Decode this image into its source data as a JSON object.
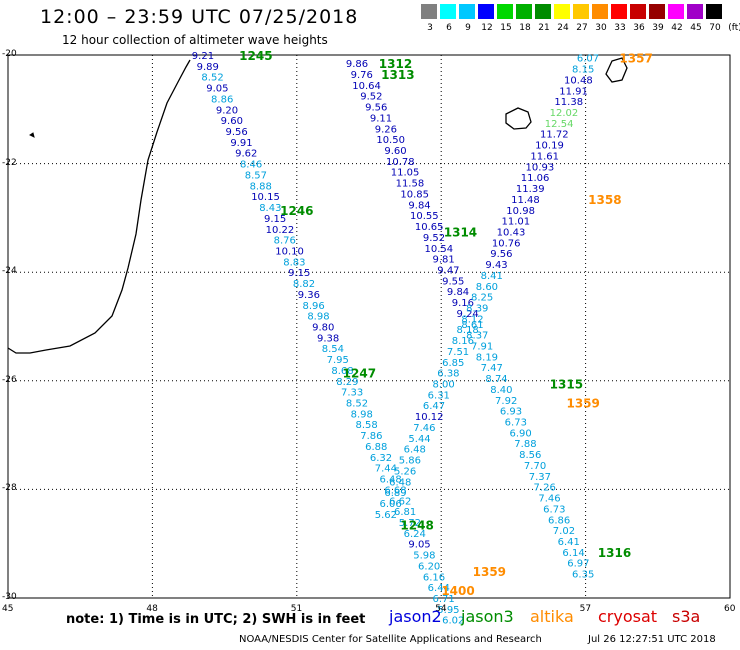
{
  "header": {
    "title": "12:00  –  23:59  UTC  07/25/2018",
    "subtitle": "12 hour collection of altimeter wave heights"
  },
  "legend": {
    "unit": "(ft)",
    "bins": [
      {
        "label": "3",
        "color": "#808080"
      },
      {
        "label": "6",
        "color": "#00ffff"
      },
      {
        "label": "9",
        "color": "#00c8ff"
      },
      {
        "label": "12",
        "color": "#0000ff"
      },
      {
        "label": "15",
        "color": "#00d800"
      },
      {
        "label": "18",
        "color": "#00b000"
      },
      {
        "label": "21",
        "color": "#008c00"
      },
      {
        "label": "24",
        "color": "#ffff00"
      },
      {
        "label": "27",
        "color": "#ffc800"
      },
      {
        "label": "30",
        "color": "#ff8c00"
      },
      {
        "label": "33",
        "color": "#ff0000"
      },
      {
        "label": "36",
        "color": "#c80000"
      },
      {
        "label": "39",
        "color": "#960000"
      },
      {
        "label": "42",
        "color": "#ff00ff"
      },
      {
        "label": "45",
        "color": "#a000c8"
      },
      {
        "label": "70",
        "color": "#000000"
      }
    ]
  },
  "axes": {
    "lon_ticks": [
      "45",
      "48",
      "51",
      "54",
      "57",
      "60"
    ],
    "lat_ticks": [
      "-20",
      "-22",
      "-24",
      "-26",
      "-28",
      "-30"
    ],
    "lon_range": [
      45,
      60
    ],
    "lat_range": [
      -20,
      -30
    ]
  },
  "colors": {
    "jason2": "#0000b4",
    "jason3": "#008c00",
    "altika": "#ff8c00",
    "cryosat": "#dc0000",
    "s3a": "#c80000",
    "light": "#00a0dc",
    "lightgreen": "#66d866",
    "pass_green": "#008c00",
    "pass_orange": "#ff8c00"
  },
  "map_data": {
    "passes": [
      {
        "label": "1245",
        "lon": 50.15,
        "lat": -20.0,
        "color": "pass_green"
      },
      {
        "label": "1246",
        "lon": 51.0,
        "lat": -22.85,
        "color": "pass_green"
      },
      {
        "label": "1247",
        "lon": 52.3,
        "lat": -25.85,
        "color": "pass_green"
      },
      {
        "label": "1248",
        "lon": 53.5,
        "lat": -28.65,
        "color": "pass_green"
      },
      {
        "label": "1312",
        "lon": 53.05,
        "lat": -20.15,
        "color": "pass_green"
      },
      {
        "label": "1313",
        "lon": 53.1,
        "lat": -20.35,
        "color": "pass_green"
      },
      {
        "label": "1314",
        "lon": 54.4,
        "lat": -23.25,
        "color": "pass_green"
      },
      {
        "label": "1315",
        "lon": 56.6,
        "lat": -26.05,
        "color": "pass_green"
      },
      {
        "label": "1316",
        "lon": 57.6,
        "lat": -29.15,
        "color": "pass_green"
      },
      {
        "label": "1357",
        "lon": 58.05,
        "lat": -20.05,
        "color": "pass_orange"
      },
      {
        "label": "1358",
        "lon": 57.4,
        "lat": -22.65,
        "color": "pass_orange"
      },
      {
        "label": "1359",
        "lon": 56.95,
        "lat": -26.4,
        "color": "pass_orange"
      },
      {
        "label": "1359",
        "lon": 55.0,
        "lat": -29.5,
        "color": "pass_orange"
      },
      {
        "label": "1400",
        "lon": 54.35,
        "lat": -29.85,
        "color": "pass_orange"
      }
    ],
    "tracks": [
      {
        "start_lon": 49.05,
        "start_lat": -20.0,
        "dlon": 0.1,
        "dlat": -0.2,
        "color": "jason2",
        "values": [
          "9.21",
          "9.89",
          "8.52",
          "9.05",
          "8.86",
          "9.20",
          "9.60",
          "9.56",
          "9.91",
          "9.62",
          "8.46",
          "8.57",
          "8.88",
          "10.15",
          "8.43",
          "9.15",
          "10.22",
          "8.76",
          "10.10",
          "8.83",
          "9.15",
          "8.82",
          "9.36",
          "8.96",
          "8.98",
          "9.80",
          "9.38",
          "8.54",
          "7.95",
          "8.68",
          "8.29",
          "7.33",
          "8.52",
          "8.98",
          "8.58",
          "7.86",
          "6.88",
          "6.32",
          "7.44",
          "6.48",
          "6.68",
          "6.62",
          "6.81",
          "5.72",
          "6.24",
          "9.05",
          "5.98",
          "6.20",
          "6.16",
          "6.44",
          "6.71",
          "5.95",
          "6.02"
        ]
      },
      {
        "start_lon": 52.25,
        "start_lat": -20.15,
        "dlon": 0.1,
        "dlat": -0.2,
        "color": "jason2",
        "values": [
          "9.86",
          "9.76",
          "10.64",
          "9.52",
          "9.56",
          "9.11",
          "9.26",
          "10.50",
          "9.60",
          "10.78",
          "11.05",
          "11.58",
          "10.85",
          "9.84",
          "10.55",
          "10.65",
          "9.52",
          "10.54",
          "9.81",
          "9.47",
          "9.55",
          "9.84",
          "9.16",
          "9.24",
          "8.61",
          "8.37",
          "7.91",
          "8.19",
          "7.47",
          "8.74",
          "8.40",
          "7.92",
          "6.93",
          "6.73",
          "6.90",
          "7.88",
          "8.56",
          "7.70",
          "7.37",
          "7.26",
          "7.46",
          "6.73",
          "6.86",
          "7.02",
          "6.41",
          "6.14",
          "6.97",
          "6.35"
        ]
      },
      {
        "start_lon": 57.05,
        "start_lat": -20.05,
        "dlon": -0.1,
        "dlat": -0.2,
        "color": "jason2",
        "values": [
          "6.07",
          "8.15",
          "10.48",
          "11.91",
          "11.38",
          "12.02",
          "12.54",
          "11.72",
          "10.19",
          "11.61",
          "10.93",
          "11.06",
          "11.39",
          "11.48",
          "10.98",
          "11.01",
          "10.43",
          "10.76",
          "9.56",
          "9.43",
          "8.41",
          "8.60",
          "8.25",
          "8.39",
          "8.12",
          "8.18",
          "8.16",
          "7.51",
          "6.85",
          "6.38",
          "8.00",
          "6.31",
          "6.47",
          "10.12",
          "7.46",
          "5.44",
          "6.48",
          "5.86",
          "5.26",
          "6.48",
          "6.89",
          "6.06",
          "5.62"
        ]
      }
    ]
  },
  "footer": {
    "note": "note:  1) Time is in UTC;  2) SWH is in feet",
    "satellites": [
      {
        "label": "jason2",
        "color": "#0000dc"
      },
      {
        "label": "jason3",
        "color": "#008c00"
      },
      {
        "label": "altika",
        "color": "#ff8c00"
      },
      {
        "label": "cryosat",
        "color": "#dc0000"
      },
      {
        "label": "s3a",
        "color": "#c80000"
      }
    ],
    "credit": "NOAA/NESDIS Center for Satellite Applications and Research",
    "timestamp": "Jul 26 12:27:51 UTC 2018"
  }
}
